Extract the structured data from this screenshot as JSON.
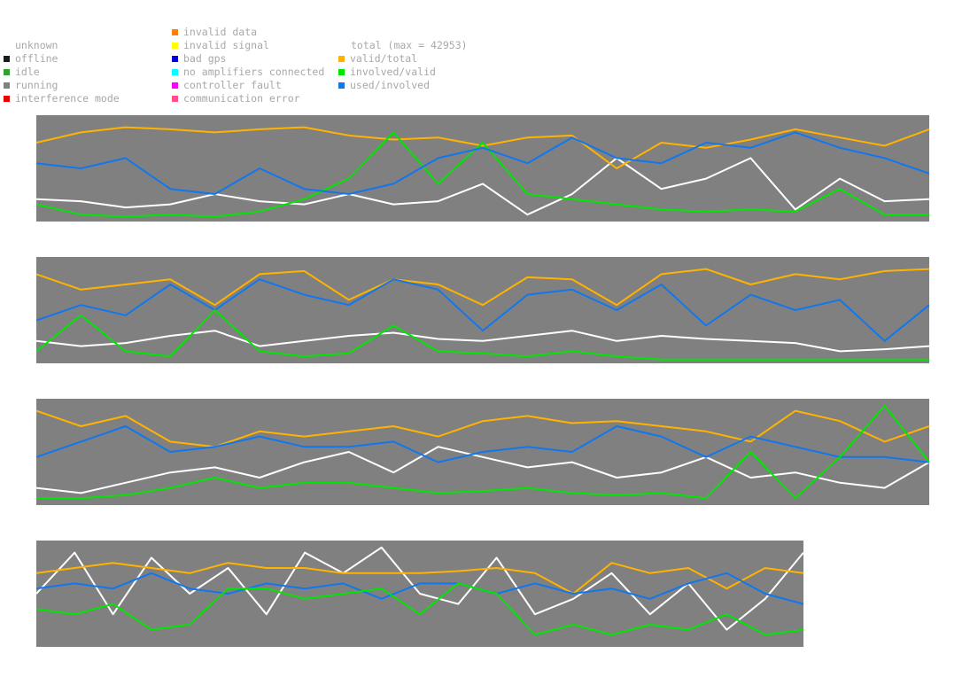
{
  "legend": {
    "status_column_1": [
      {
        "label": "unknown",
        "color": ""
      },
      {
        "label": "offline",
        "color": "#1a1a1a"
      },
      {
        "label": "idle",
        "color": "#33a033"
      },
      {
        "label": "running",
        "color": "#808080"
      },
      {
        "label": "interference mode",
        "color": "#ee0000"
      }
    ],
    "status_column_2": [
      {
        "label": "invalid data",
        "color": "#ff7f00"
      },
      {
        "label": "invalid signal",
        "color": "#ffff00"
      },
      {
        "label": "bad gps",
        "color": "#0000dd"
      },
      {
        "label": "no amplifiers connected",
        "color": "#00ffff"
      },
      {
        "label": "controller fault",
        "color": "#ff00ff"
      },
      {
        "label": "communication error",
        "color": "#ff4f8f"
      }
    ],
    "total_label": "total (max = 42953)",
    "series_legend": [
      {
        "label": "valid/total",
        "color": "#ffb300"
      },
      {
        "label": "involved/valid",
        "color": "#00e600"
      },
      {
        "label": "used/involved",
        "color": "#1177ee"
      }
    ]
  },
  "colors": {
    "panel_background": "#808080",
    "total": "#ffffff",
    "valid_total": "#ffb300",
    "involved_valid": "#00e600",
    "used_involved": "#1177ee"
  },
  "chart_data": [
    {
      "type": "line",
      "panel": 1,
      "x": [
        0,
        0.05,
        0.1,
        0.15,
        0.2,
        0.25,
        0.3,
        0.35,
        0.4,
        0.45,
        0.5,
        0.55,
        0.6,
        0.65,
        0.7,
        0.75,
        0.8,
        0.85,
        0.9,
        0.95,
        1
      ],
      "series": [
        {
          "name": "total",
          "values": [
            0.2,
            0.18,
            0.12,
            0.15,
            0.25,
            0.18,
            0.15,
            0.25,
            0.15,
            0.18,
            0.35,
            0.05,
            0.25,
            0.6,
            0.3,
            0.4,
            0.6,
            0.1,
            0.4,
            0.18,
            0.2
          ]
        },
        {
          "name": "valid/total",
          "values": [
            0.75,
            0.85,
            0.9,
            0.88,
            0.85,
            0.88,
            0.9,
            0.82,
            0.78,
            0.8,
            0.72,
            0.8,
            0.82,
            0.5,
            0.75,
            0.7,
            0.78,
            0.88,
            0.8,
            0.72,
            0.88
          ]
        },
        {
          "name": "involved/valid",
          "values": [
            0.15,
            0.05,
            0.03,
            0.05,
            0.03,
            0.08,
            0.2,
            0.4,
            0.85,
            0.35,
            0.75,
            0.25,
            0.2,
            0.15,
            0.1,
            0.08,
            0.1,
            0.08,
            0.3,
            0.05,
            0.05
          ]
        },
        {
          "name": "used/involved",
          "values": [
            0.55,
            0.5,
            0.6,
            0.3,
            0.25,
            0.5,
            0.3,
            0.25,
            0.35,
            0.6,
            0.7,
            0.55,
            0.8,
            0.6,
            0.55,
            0.75,
            0.7,
            0.85,
            0.7,
            0.6,
            0.45
          ]
        }
      ]
    },
    {
      "type": "line",
      "panel": 2,
      "x": [
        0,
        0.05,
        0.1,
        0.15,
        0.2,
        0.25,
        0.3,
        0.35,
        0.4,
        0.45,
        0.5,
        0.55,
        0.6,
        0.65,
        0.7,
        0.75,
        0.8,
        0.85,
        0.9,
        0.95,
        1
      ],
      "series": [
        {
          "name": "total",
          "values": [
            0.2,
            0.15,
            0.18,
            0.25,
            0.3,
            0.15,
            0.2,
            0.25,
            0.28,
            0.22,
            0.2,
            0.25,
            0.3,
            0.2,
            0.25,
            0.22,
            0.2,
            0.18,
            0.1,
            0.12,
            0.15
          ]
        },
        {
          "name": "valid/total",
          "values": [
            0.85,
            0.7,
            0.75,
            0.8,
            0.55,
            0.85,
            0.88,
            0.6,
            0.8,
            0.75,
            0.55,
            0.82,
            0.8,
            0.55,
            0.85,
            0.9,
            0.75,
            0.85,
            0.8,
            0.88,
            0.9
          ]
        },
        {
          "name": "used/involved",
          "values": [
            0.4,
            0.55,
            0.45,
            0.75,
            0.5,
            0.8,
            0.65,
            0.55,
            0.8,
            0.7,
            0.3,
            0.65,
            0.7,
            0.5,
            0.75,
            0.35,
            0.65,
            0.5,
            0.6,
            0.2,
            0.55
          ]
        },
        {
          "name": "involved/valid",
          "values": [
            0.1,
            0.45,
            0.1,
            0.05,
            0.5,
            0.1,
            0.05,
            0.08,
            0.35,
            0.1,
            0.08,
            0.05,
            0.1,
            0.05,
            0.02,
            0.02,
            0.02,
            0.02,
            0.02,
            0.02,
            0.02
          ]
        }
      ]
    },
    {
      "type": "line",
      "panel": 3,
      "x": [
        0,
        0.05,
        0.1,
        0.15,
        0.2,
        0.25,
        0.3,
        0.35,
        0.4,
        0.45,
        0.5,
        0.55,
        0.6,
        0.65,
        0.7,
        0.75,
        0.8,
        0.85,
        0.9,
        0.95,
        1
      ],
      "series": [
        {
          "name": "total",
          "values": [
            0.15,
            0.1,
            0.2,
            0.3,
            0.35,
            0.25,
            0.4,
            0.5,
            0.3,
            0.55,
            0.45,
            0.35,
            0.4,
            0.25,
            0.3,
            0.45,
            0.25,
            0.3,
            0.2,
            0.15,
            0.4
          ]
        },
        {
          "name": "valid/total",
          "values": [
            0.9,
            0.75,
            0.85,
            0.6,
            0.55,
            0.7,
            0.65,
            0.7,
            0.75,
            0.65,
            0.8,
            0.85,
            0.78,
            0.8,
            0.75,
            0.7,
            0.6,
            0.9,
            0.8,
            0.6,
            0.75
          ]
        },
        {
          "name": "used/involved",
          "values": [
            0.45,
            0.6,
            0.75,
            0.5,
            0.55,
            0.65,
            0.55,
            0.55,
            0.6,
            0.4,
            0.5,
            0.55,
            0.5,
            0.75,
            0.65,
            0.45,
            0.65,
            0.55,
            0.45,
            0.45,
            0.4
          ]
        },
        {
          "name": "involved/valid",
          "values": [
            0.05,
            0.05,
            0.08,
            0.15,
            0.25,
            0.15,
            0.2,
            0.2,
            0.15,
            0.1,
            0.12,
            0.15,
            0.1,
            0.08,
            0.1,
            0.05,
            0.5,
            0.05,
            0.45,
            0.95,
            0.4
          ]
        }
      ]
    },
    {
      "type": "line",
      "panel": 4,
      "x": [
        0,
        0.05,
        0.1,
        0.15,
        0.2,
        0.25,
        0.3,
        0.35,
        0.4,
        0.45,
        0.5,
        0.55,
        0.6,
        0.65,
        0.7,
        0.75,
        0.8,
        0.85,
        0.9,
        0.95,
        1
      ],
      "series": [
        {
          "name": "total",
          "values": [
            0.5,
            0.9,
            0.3,
            0.85,
            0.5,
            0.75,
            0.3,
            0.9,
            0.7,
            0.95,
            0.5,
            0.4,
            0.85,
            0.3,
            0.45,
            0.7,
            0.3,
            0.6,
            0.15,
            0.45,
            0.9
          ]
        },
        {
          "name": "valid/total",
          "values": [
            0.7,
            0.75,
            0.8,
            0.75,
            0.7,
            0.8,
            0.75,
            0.75,
            0.7,
            0.7,
            0.7,
            0.72,
            0.75,
            0.7,
            0.5,
            0.8,
            0.7,
            0.75,
            0.55,
            0.75,
            0.7
          ]
        },
        {
          "name": "used/involved",
          "values": [
            0.55,
            0.6,
            0.55,
            0.7,
            0.55,
            0.5,
            0.6,
            0.55,
            0.6,
            0.45,
            0.6,
            0.6,
            0.5,
            0.6,
            0.5,
            0.55,
            0.45,
            0.6,
            0.7,
            0.5,
            0.4
          ]
        },
        {
          "name": "involved/valid",
          "values": [
            0.35,
            0.3,
            0.4,
            0.15,
            0.2,
            0.55,
            0.55,
            0.45,
            0.5,
            0.55,
            0.3,
            0.6,
            0.5,
            0.1,
            0.2,
            0.1,
            0.2,
            0.15,
            0.3,
            0.1,
            0.15
          ]
        }
      ]
    }
  ]
}
